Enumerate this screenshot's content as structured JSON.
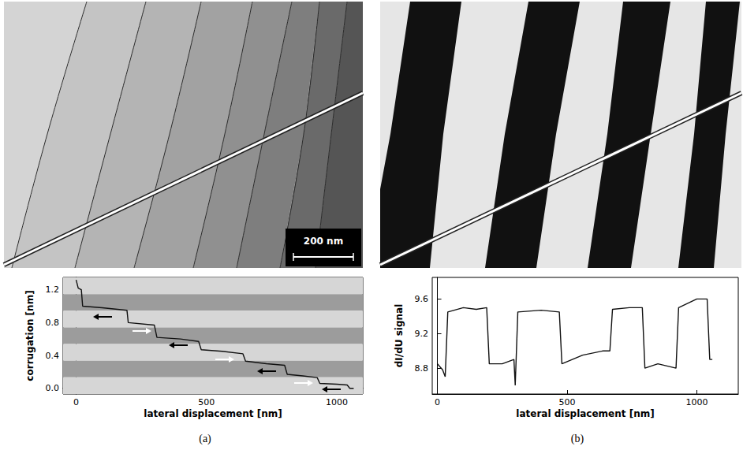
{
  "chart_data": [
    {
      "type": "line",
      "title": "(a)",
      "x_label": "lateral displacement [nm]",
      "y_label": "corrugation [nm]",
      "x": [
        0,
        8,
        20,
        25,
        100,
        195,
        200,
        300,
        310,
        400,
        470,
        480,
        560,
        640,
        650,
        730,
        800,
        810,
        870,
        925,
        935,
        1000,
        1040,
        1050,
        1065
      ],
      "values": [
        1.32,
        1.22,
        1.2,
        1.0,
        0.98,
        0.95,
        0.8,
        0.77,
        0.62,
        0.6,
        0.57,
        0.47,
        0.45,
        0.42,
        0.33,
        0.3,
        0.28,
        0.17,
        0.15,
        0.13,
        0.06,
        0.05,
        0.04,
        0.0,
        0.0
      ],
      "color": "#111111",
      "xlim": [
        -50,
        1100
      ],
      "xticks": [
        0,
        500,
        1000
      ],
      "ylim": [
        -0.07,
        1.35
      ],
      "yticks": [
        {
          "value": 0,
          "label": "0.0"
        },
        0.4,
        0.8,
        1.2
      ],
      "grid": false,
      "annotations": [
        "200 nm"
      ]
    },
    {
      "type": "line",
      "title": "(b)",
      "x_label": "lateral displacement [nm]",
      "y_label": "dI/dU signal",
      "x": [
        0,
        20,
        30,
        40,
        100,
        150,
        190,
        200,
        250,
        295,
        300,
        310,
        400,
        470,
        480,
        560,
        640,
        665,
        675,
        740,
        790,
        800,
        850,
        920,
        930,
        1000,
        1040,
        1050,
        1060
      ],
      "values": [
        8.85,
        8.78,
        8.7,
        9.45,
        9.5,
        9.48,
        9.5,
        8.85,
        8.85,
        8.9,
        8.6,
        9.45,
        9.47,
        9.45,
        8.85,
        8.95,
        9.0,
        9.0,
        9.48,
        9.5,
        9.5,
        8.8,
        8.85,
        8.8,
        9.5,
        9.6,
        9.6,
        8.9,
        8.9
      ],
      "color": "#111111",
      "xlim": [
        -20,
        1160
      ],
      "xticks": [
        0,
        500,
        1000
      ],
      "ylim": [
        8.5,
        9.85
      ],
      "yticks": [
        8.8,
        9.2,
        9.6
      ],
      "grid": false
    }
  ]
}
